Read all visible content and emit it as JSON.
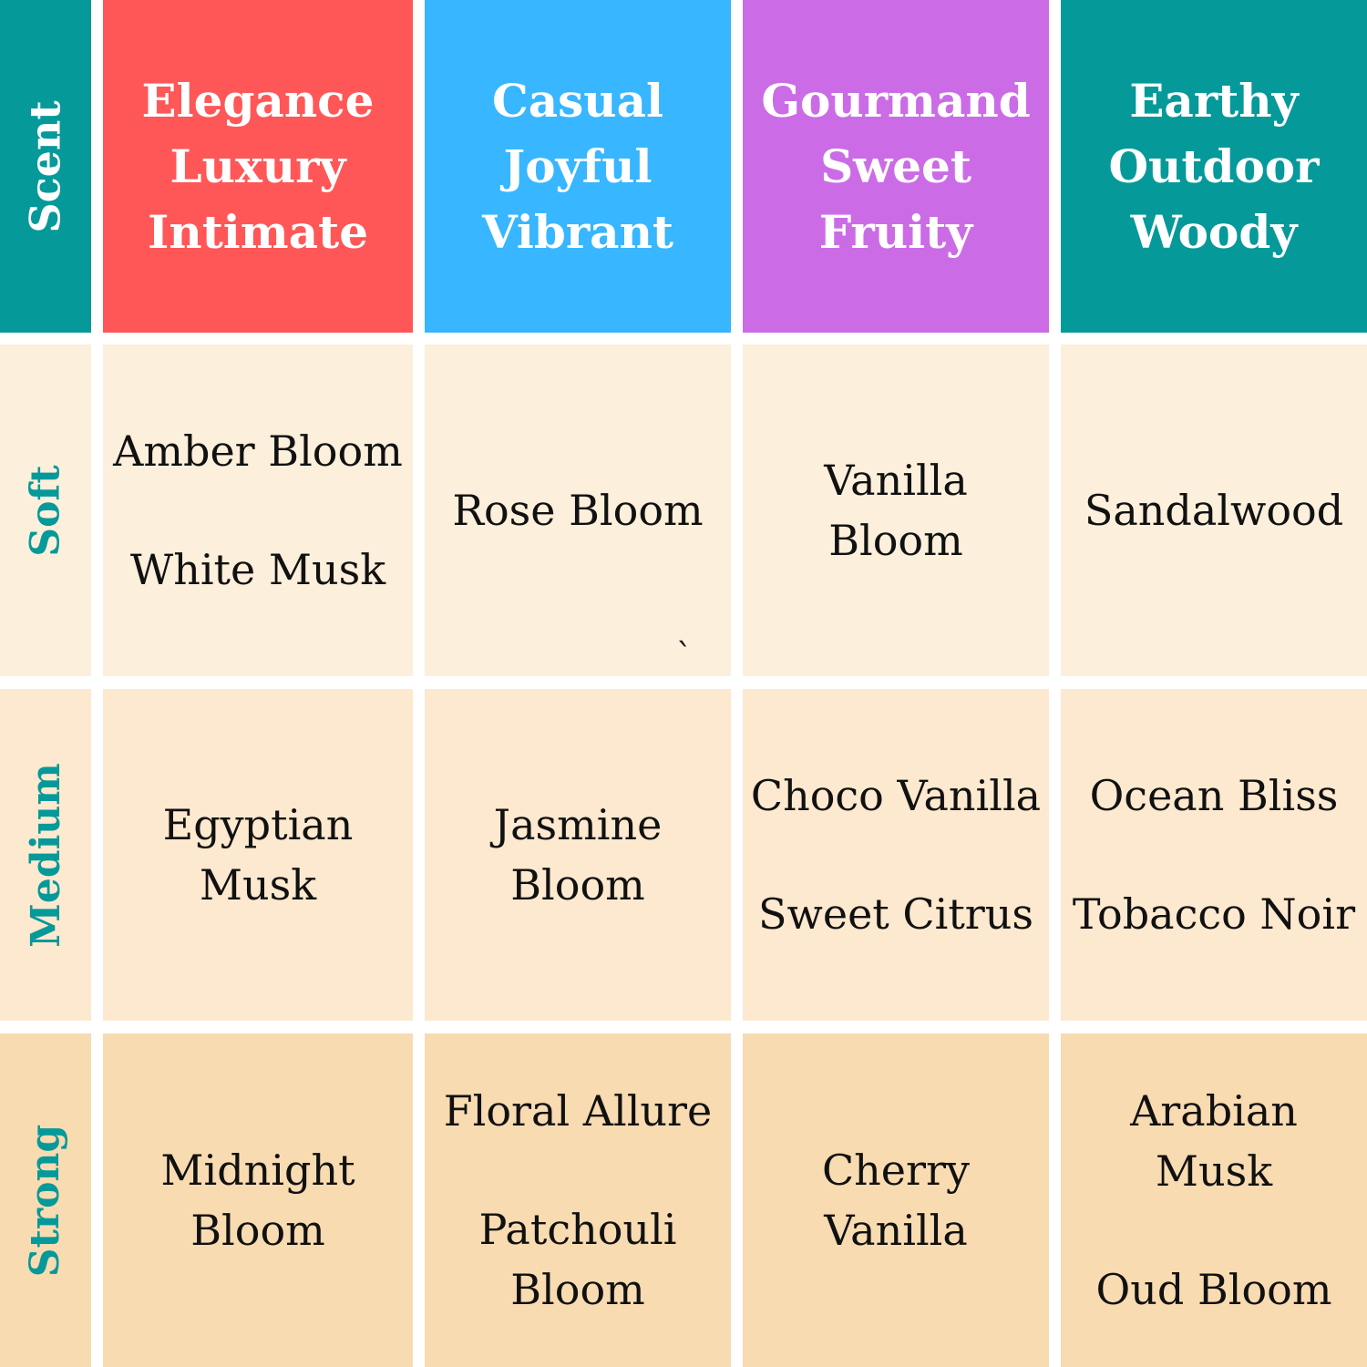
{
  "corner_label": "Scent",
  "colors": {
    "teal": "#06999a",
    "elegance": "#ff5757",
    "casual": "#38b6ff",
    "gourmand": "#cb6ce6",
    "earthy": "#06999a",
    "soft_bg": "#fcefdc",
    "medium_bg": "#fde9cf",
    "strong_bg": "#f8dbb1"
  },
  "columns": [
    {
      "lines": [
        "Elegance",
        "Luxury",
        "Intimate"
      ]
    },
    {
      "lines": [
        "Casual",
        "Joyful",
        "Vibrant"
      ]
    },
    {
      "lines": [
        "Gourmand",
        "Sweet",
        "Fruity"
      ]
    },
    {
      "lines": [
        "Earthy",
        "Outdoor",
        "Woody"
      ]
    }
  ],
  "rows": [
    {
      "label": "Soft",
      "cells": [
        {
          "items": [
            "Amber Bloom",
            "White Musk"
          ]
        },
        {
          "items": [
            "Rose Bloom"
          ]
        },
        {
          "items": [
            "Vanilla\nBloom"
          ]
        },
        {
          "items": [
            "Sandalwood"
          ]
        }
      ]
    },
    {
      "label": "Medium",
      "cells": [
        {
          "items": [
            "Egyptian\nMusk"
          ]
        },
        {
          "items": [
            "Jasmine\nBloom"
          ]
        },
        {
          "items": [
            "Choco Vanilla",
            "Sweet Citrus"
          ]
        },
        {
          "items": [
            "Ocean Bliss",
            "Tobacco Noir"
          ]
        }
      ]
    },
    {
      "label": "Strong",
      "cells": [
        {
          "items": [
            "Midnight\nBloom"
          ]
        },
        {
          "items": [
            "Floral Allure",
            "Patchouli\nBloom"
          ]
        },
        {
          "items": [
            "Cherry\nVanilla"
          ]
        },
        {
          "items": [
            "Arabian\nMusk",
            "Oud Bloom"
          ]
        }
      ]
    }
  ],
  "stray_mark": "`"
}
